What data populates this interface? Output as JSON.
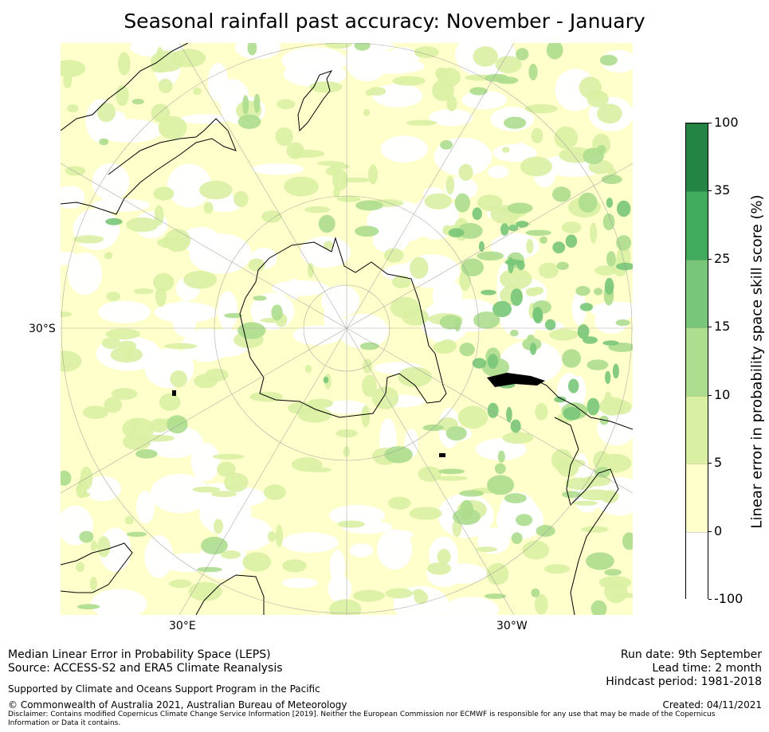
{
  "title": "Seasonal rainfall past accuracy: November - January",
  "map": {
    "labels": {
      "lat_left": "30°S",
      "lon_bottom_left": "30°E",
      "lon_bottom_right": "30°W"
    }
  },
  "colorbar": {
    "title": "Linear error in probability space skill score (%)",
    "ticks": [
      "100",
      "35",
      "25",
      "15",
      "10",
      "5",
      "0",
      "-100"
    ],
    "colors": [
      "#ffffff",
      "#ffffcc",
      "#d9f0a3",
      "#addd8e",
      "#78c679",
      "#41ab5d",
      "#238443"
    ]
  },
  "footer": {
    "line1": "Median Linear Error in Probability Space (LEPS)",
    "line2": "Source: ACCESS-S2 and ERA5 Climate Reanalysis",
    "support": "Supported by Climate and Oceans Support Program in the Pacific",
    "copyright": "© Commonwealth of Australia 2021, Australian Bureau of Meteorology",
    "disclaimer1": "Disclaimer: Contains modified Copernicus Climate Change Service Information [2019]. Neither the European Commission nor ECMWF is responsible for any use that may be made of the Copernicus",
    "disclaimer2": "Information or Data it contains.",
    "run_date": "Run date: 9th September",
    "lead_time": "Lead time: 2 month",
    "hindcast": "Hindcast period: 1981-2018",
    "created": "Created: 04/11/2021"
  }
}
